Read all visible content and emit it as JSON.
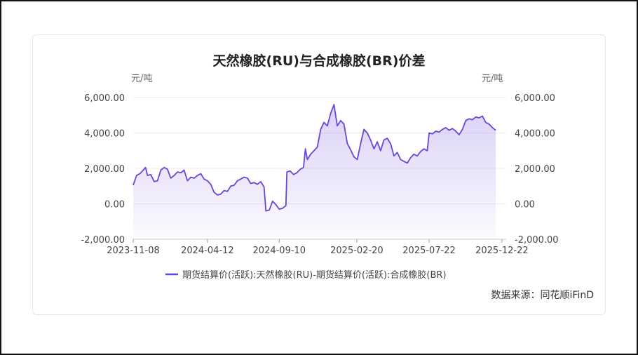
{
  "chart_data": {
    "type": "area",
    "title": "天然橡胶(RU)与合成橡胶(BR)价差",
    "y_unit_left": "元/吨",
    "y_unit_right": "元/吨",
    "ylim": [
      -2000,
      6000
    ],
    "y_ticks": [
      -2000,
      0,
      2000,
      4000,
      6000
    ],
    "y_tick_labels": [
      "-2,000.00",
      "0.00",
      "2,000.00",
      "4,000.00",
      "6,000.00"
    ],
    "x_range": [
      "2023-11-08",
      "2025-12-31"
    ],
    "x_tick_labels": [
      "2023-11-08",
      "2024-04-12",
      "2024-09-10",
      "2025-02-20",
      "2025-07-22",
      "2025-12-22"
    ],
    "grid": true,
    "legend_position": "bottom",
    "series": [
      {
        "name": "期货结算价(活跃):天然橡胶(RU)-期货结算价(活跃):合成橡胶(BR)",
        "color": "#6a45d8",
        "points": [
          [
            "2023-11-08",
            1050
          ],
          [
            "2023-11-15",
            1600
          ],
          [
            "2023-11-22",
            1700
          ],
          [
            "2023-11-29",
            1900
          ],
          [
            "2023-12-04",
            2050
          ],
          [
            "2023-12-08",
            1600
          ],
          [
            "2023-12-15",
            1650
          ],
          [
            "2023-12-22",
            1250
          ],
          [
            "2023-12-29",
            1300
          ],
          [
            "2024-01-05",
            1900
          ],
          [
            "2024-01-12",
            2050
          ],
          [
            "2024-01-19",
            1950
          ],
          [
            "2024-01-26",
            1450
          ],
          [
            "2024-02-02",
            1600
          ],
          [
            "2024-02-09",
            1800
          ],
          [
            "2024-02-16",
            1750
          ],
          [
            "2024-02-23",
            1900
          ],
          [
            "2024-03-01",
            1300
          ],
          [
            "2024-03-08",
            1500
          ],
          [
            "2024-03-15",
            1450
          ],
          [
            "2024-03-22",
            1600
          ],
          [
            "2024-03-29",
            1700
          ],
          [
            "2024-04-05",
            1400
          ],
          [
            "2024-04-12",
            1300
          ],
          [
            "2024-04-19",
            1100
          ],
          [
            "2024-04-26",
            650
          ],
          [
            "2024-05-03",
            500
          ],
          [
            "2024-05-10",
            550
          ],
          [
            "2024-05-17",
            750
          ],
          [
            "2024-05-24",
            700
          ],
          [
            "2024-05-31",
            1000
          ],
          [
            "2024-06-07",
            1050
          ],
          [
            "2024-06-14",
            1300
          ],
          [
            "2024-06-21",
            1400
          ],
          [
            "2024-06-28",
            1500
          ],
          [
            "2024-07-05",
            1450
          ],
          [
            "2024-07-12",
            1150
          ],
          [
            "2024-07-19",
            1200
          ],
          [
            "2024-07-26",
            1100
          ],
          [
            "2024-08-02",
            1250
          ],
          [
            "2024-08-09",
            950
          ],
          [
            "2024-08-13",
            -400
          ],
          [
            "2024-08-20",
            -350
          ],
          [
            "2024-08-27",
            150
          ],
          [
            "2024-09-03",
            -50
          ],
          [
            "2024-09-10",
            -300
          ],
          [
            "2024-09-17",
            -250
          ],
          [
            "2024-09-24",
            -100
          ],
          [
            "2024-09-26",
            1800
          ],
          [
            "2024-10-03",
            1850
          ],
          [
            "2024-10-10",
            1650
          ],
          [
            "2024-10-17",
            1750
          ],
          [
            "2024-10-24",
            1950
          ],
          [
            "2024-10-31",
            2050
          ],
          [
            "2024-11-04",
            3100
          ],
          [
            "2024-11-08",
            2500
          ],
          [
            "2024-11-15",
            2800
          ],
          [
            "2024-11-22",
            3000
          ],
          [
            "2024-11-29",
            3200
          ],
          [
            "2024-12-06",
            4200
          ],
          [
            "2024-12-13",
            4600
          ],
          [
            "2024-12-20",
            4400
          ],
          [
            "2024-12-27",
            5100
          ],
          [
            "2025-01-03",
            5600
          ],
          [
            "2025-01-10",
            4400
          ],
          [
            "2025-01-17",
            4700
          ],
          [
            "2025-01-24",
            4500
          ],
          [
            "2025-01-31",
            3400
          ],
          [
            "2025-02-07",
            3050
          ],
          [
            "2025-02-14",
            2650
          ],
          [
            "2025-02-21",
            2500
          ],
          [
            "2025-02-28",
            3400
          ],
          [
            "2025-03-07",
            4200
          ],
          [
            "2025-03-14",
            4000
          ],
          [
            "2025-03-21",
            3600
          ],
          [
            "2025-03-28",
            3100
          ],
          [
            "2025-04-04",
            3500
          ],
          [
            "2025-04-11",
            3000
          ],
          [
            "2025-04-18",
            3600
          ],
          [
            "2025-04-25",
            3700
          ],
          [
            "2025-05-02",
            3400
          ],
          [
            "2025-05-09",
            2700
          ],
          [
            "2025-05-16",
            2900
          ],
          [
            "2025-05-23",
            2500
          ],
          [
            "2025-05-30",
            2400
          ],
          [
            "2025-06-06",
            2300
          ],
          [
            "2025-06-13",
            2600
          ],
          [
            "2025-06-20",
            2800
          ],
          [
            "2025-06-27",
            2700
          ],
          [
            "2025-07-04",
            2950
          ],
          [
            "2025-07-11",
            3100
          ],
          [
            "2025-07-18",
            3000
          ],
          [
            "2025-07-22",
            4000
          ],
          [
            "2025-07-29",
            3950
          ],
          [
            "2025-08-05",
            4100
          ],
          [
            "2025-08-12",
            4050
          ],
          [
            "2025-08-19",
            4200
          ],
          [
            "2025-08-26",
            4300
          ],
          [
            "2025-09-02",
            4150
          ],
          [
            "2025-09-09",
            4250
          ],
          [
            "2025-09-16",
            4100
          ],
          [
            "2025-09-23",
            3900
          ],
          [
            "2025-09-30",
            4200
          ],
          [
            "2025-10-07",
            4700
          ],
          [
            "2025-10-14",
            4800
          ],
          [
            "2025-10-21",
            4750
          ],
          [
            "2025-10-28",
            4900
          ],
          [
            "2025-11-04",
            4850
          ],
          [
            "2025-11-11",
            4950
          ],
          [
            "2025-11-18",
            4600
          ],
          [
            "2025-11-25",
            4500
          ],
          [
            "2025-12-02",
            4300
          ],
          [
            "2025-12-09",
            4150
          ]
        ]
      }
    ]
  },
  "source_label": "数据来源：同花顺iFinD"
}
